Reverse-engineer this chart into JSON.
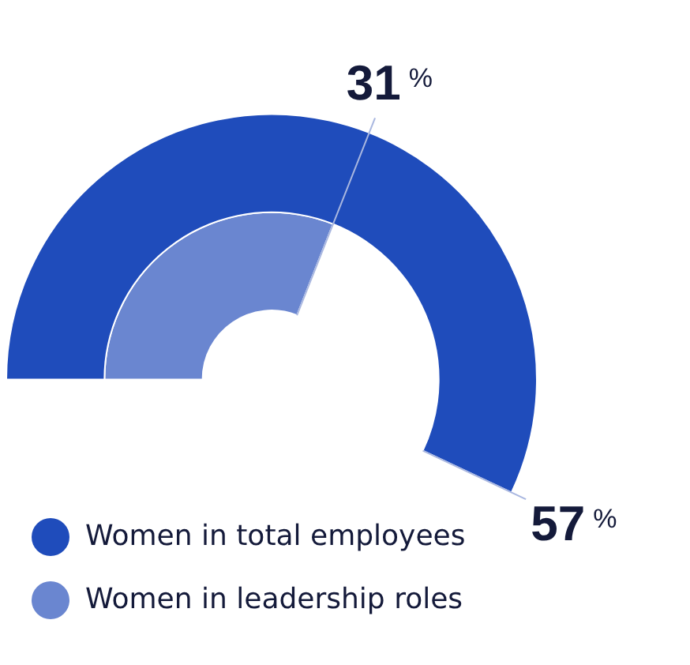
{
  "chart_data": {
    "type": "donut",
    "series": [
      {
        "name": "Women in total employees",
        "color": "#1f4cbb",
        "values": [
          57
        ],
        "value_labels": [
          "57%"
        ]
      },
      {
        "name": "Women in leadership roles",
        "color": "#6a86d0",
        "values": [
          31
        ],
        "value_labels": [
          "31%"
        ]
      }
    ],
    "legend": "bottom left"
  }
}
